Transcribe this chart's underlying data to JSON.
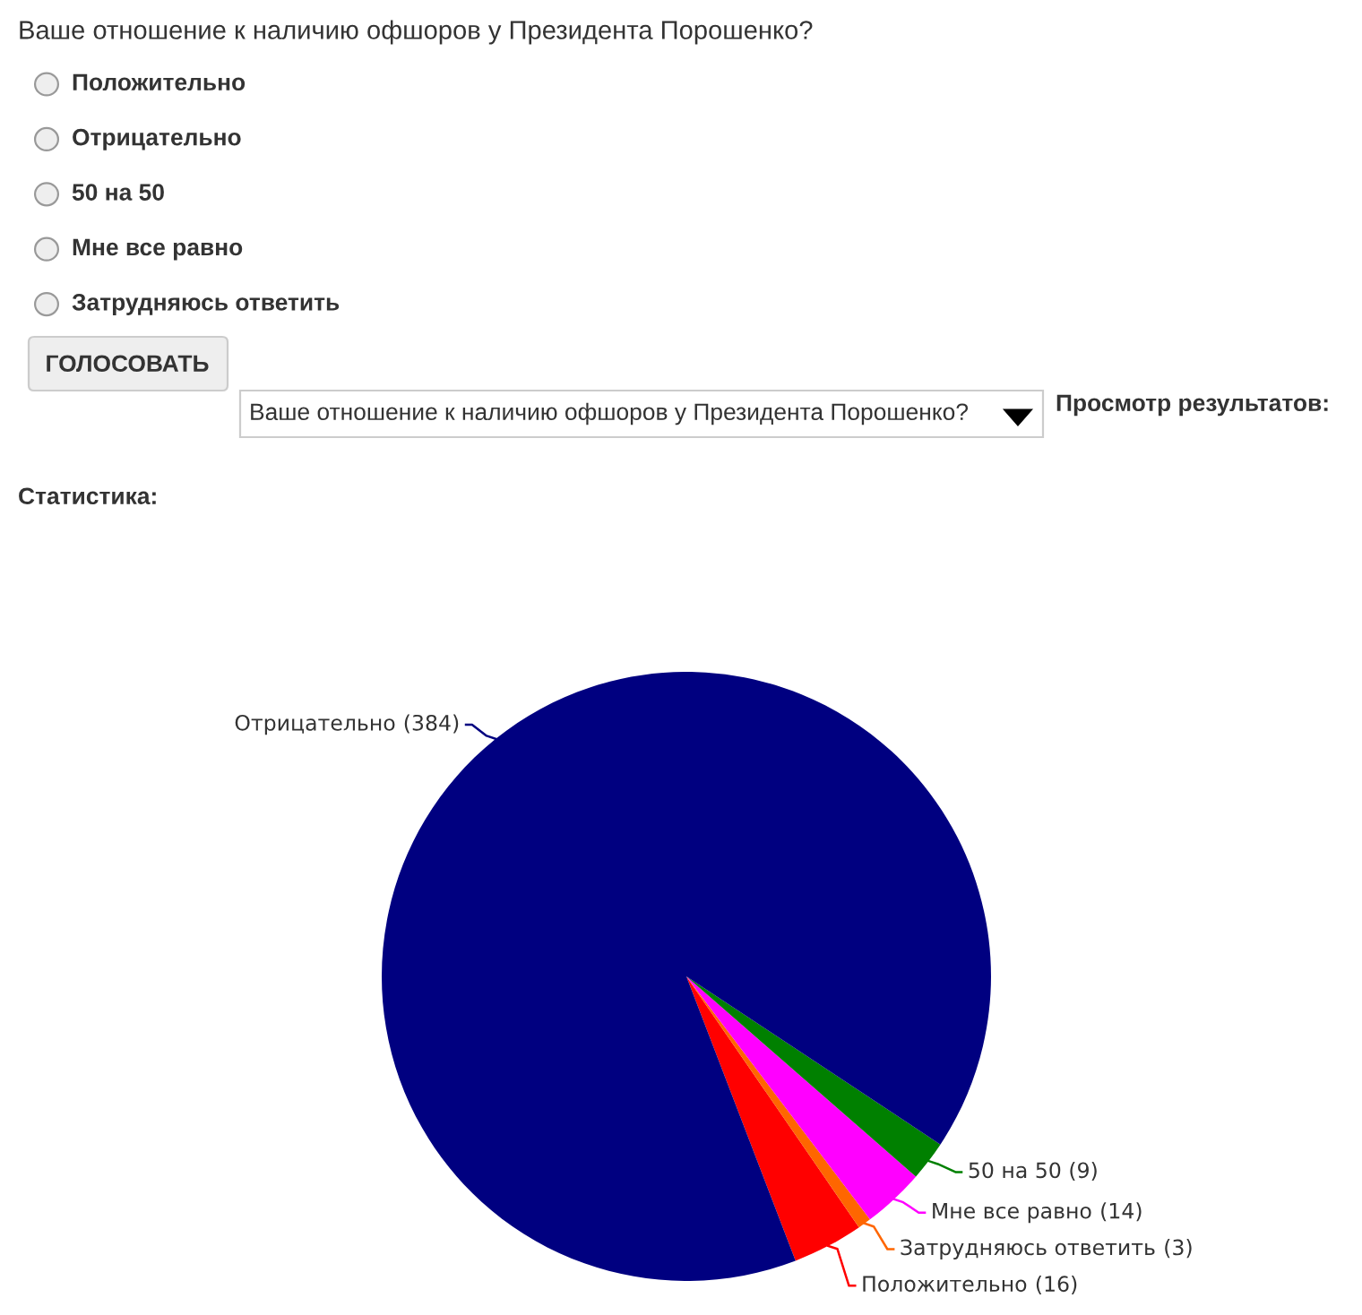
{
  "chart_data": {
    "type": "pie",
    "title": "Ваше отношение к наличию офшоров у Президента Порошенко?",
    "annotations": [
      "Положительно",
      "Отрицательно",
      "50 на 50",
      "Мне все равно",
      "Затрудняюсь ответить",
      "ГОЛОСОВАТЬ",
      "Ваше отношение к наличию офшоров у Президента Порошенко?",
      "Просмотр результатов:",
      "Статистика:"
    ],
    "categories": [
      "Положительно",
      "Затрудняюсь ответить",
      "Мне все равно",
      "50 на 50",
      "Отрицательно"
    ],
    "values": [
      16,
      3,
      14,
      9,
      384
    ],
    "colors": [
      "#ff0000",
      "#ff6600",
      "#ff00ff",
      "#008000",
      "#000080"
    ],
    "value_labels": [
      "(16)",
      "(3)",
      "(14)",
      "(9)",
      "(384)"
    ],
    "legend": false
  }
}
